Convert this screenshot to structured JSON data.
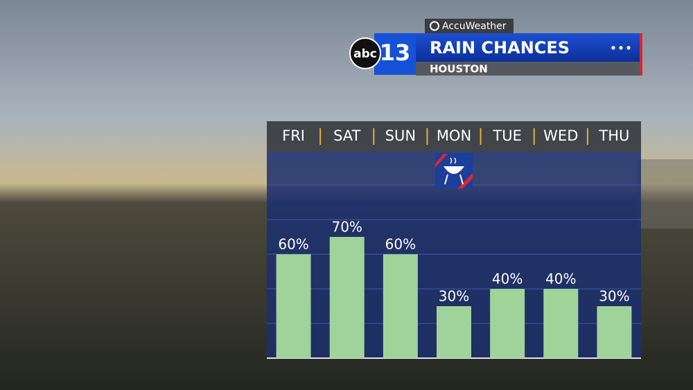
{
  "brand": {
    "network": "abc",
    "channel": "13",
    "partner": "AccuWeather"
  },
  "chart_data": {
    "type": "bar",
    "title": "RAIN CHANCES",
    "subtitle": "HOUSTON",
    "categories": [
      "FRI",
      "SAT",
      "SUN",
      "MON",
      "TUE",
      "WED",
      "THU"
    ],
    "values": [
      60,
      70,
      60,
      30,
      40,
      40,
      30
    ],
    "value_labels": [
      "60%",
      "70%",
      "60%",
      "30%",
      "40%",
      "40%",
      "30%"
    ],
    "color": "#9fd39a",
    "ylim": [
      0,
      100
    ],
    "yticks": [
      20,
      40,
      60,
      80,
      100
    ],
    "grid": true
  }
}
